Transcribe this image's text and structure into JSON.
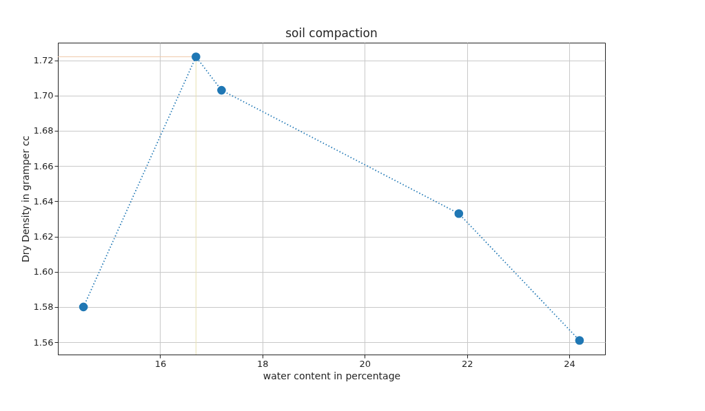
{
  "chart_data": {
    "type": "line",
    "title": "soil compaction",
    "xlabel": "water content in percentage",
    "ylabel": "Dry Density in gramper cc",
    "x": [
      14.5,
      16.7,
      17.2,
      21.84,
      24.2
    ],
    "series": [
      {
        "color": "#1f77b4",
        "values": [
          1.58,
          1.722,
          1.703,
          1.633,
          1.561
        ]
      }
    ],
    "xlim": [
      14.0,
      24.7
    ],
    "xticks": [
      16,
      18,
      20,
      22,
      24
    ],
    "ylim": [
      1.553,
      1.73
    ],
    "yticks": [
      1.56,
      1.58,
      {
        "value": 1.6,
        "label": "1.60"
      },
      1.62,
      1.64,
      1.66,
      1.68,
      {
        "value": 1.7,
        "label": "1.70"
      },
      1.72
    ],
    "ref_lines": [
      {
        "axis": "y",
        "value": 1.722,
        "color": "#f0c8a8"
      },
      {
        "axis": "x",
        "value": 16.7,
        "color": "#e8e0b0"
      }
    ],
    "grid": true,
    "marker": "circle",
    "line_style": "dotted"
  }
}
